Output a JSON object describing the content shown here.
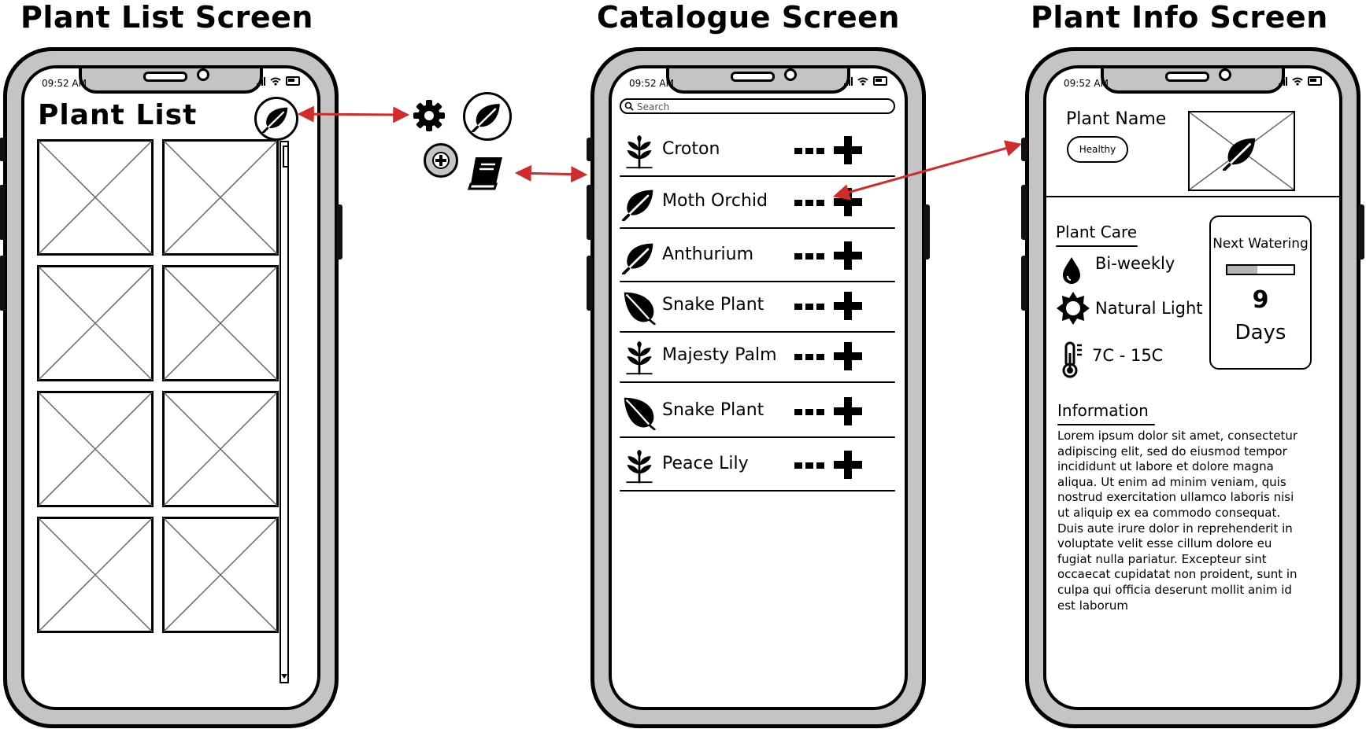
{
  "titles": {
    "plant_list": "Plant List Screen",
    "catalogue": "Catalogue Screen",
    "plant_info": "Plant Info Screen"
  },
  "status_bar": {
    "time": "09:52 AM"
  },
  "plant_list": {
    "heading": "Plant List",
    "leaf_button_icon": "leaf-icon",
    "tile_count": 8
  },
  "legend": {
    "settings_icon": "gear-icon",
    "leaf_icon": "leaf-icon",
    "add_icon": "plus-circle-icon",
    "catalogue_icon": "book-icon"
  },
  "catalogue": {
    "search_placeholder": "Search",
    "items": [
      {
        "name": "Croton",
        "icon": "sprig-icon"
      },
      {
        "name": "Moth Orchid",
        "icon": "leaf-icon"
      },
      {
        "name": "Anthurium",
        "icon": "leaf-icon"
      },
      {
        "name": "Snake Plant",
        "icon": "pointed-leaf-icon"
      },
      {
        "name": "Majesty Palm",
        "icon": "sprig-icon"
      },
      {
        "name": "Snake Plant",
        "icon": "pointed-leaf-icon"
      },
      {
        "name": "Peace Lily",
        "icon": "sprig-icon"
      }
    ]
  },
  "plant_info": {
    "plant_name": "Plant Name",
    "health_status": "Healthy",
    "care_title": "Plant Care",
    "watering": "Bi-weekly",
    "light": "Natural Light",
    "temperature": "7C - 15C",
    "next_watering": {
      "label": "Next Watering",
      "days": "9",
      "unit": "Days",
      "progress": 0.45
    },
    "information_title": "Information",
    "information_text": "Lorem ipsum dolor sit amet, consectetur adipiscing elit, sed do eiusmod tempor incididunt ut labore et dolore magna aliqua. Ut enim ad minim veniam, quis nostrud exercitation ullamco laboris nisi ut aliquip ex ea commodo consequat. Duis aute irure dolor in reprehenderit in voluptate velit esse cillum dolore eu fugiat nulla pariatur. Excepteur sint occaecat cupidatat non proident, sunt in culpa qui officia deserunt mollit anim id est laborum"
  },
  "colors": {
    "arrow": "#d22b2b",
    "frame": "#c4c4c4"
  }
}
